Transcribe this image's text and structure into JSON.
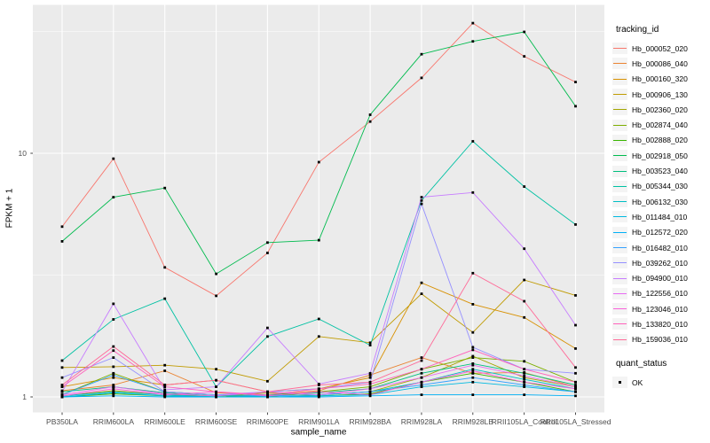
{
  "chart_data": {
    "type": "line",
    "title": "",
    "xlabel": "sample_name",
    "ylabel": "FPKM + 1",
    "y_scale": "log10",
    "y_ticks": [
      1,
      10
    ],
    "y_tick_labels": [
      "1",
      "10"
    ],
    "y_minor_ticks": [
      3.162,
      31.62
    ],
    "ylim": [
      0.87,
      40.5
    ],
    "grid": true,
    "panel_bg": "#ebebeb",
    "grid_color": "#ffffff",
    "point_color": "#000000",
    "point_shape": "square",
    "legend_position": "right",
    "categories": [
      "PB350LA",
      "RRIM600LA",
      "RRIM600LE",
      "RRIM600SE",
      "RRIM600PE",
      "RRIM901LA",
      "RRIM928BA",
      "RRIM928LA",
      "RRIM928LB",
      "RRII105LA_Control",
      "RRII105LA_Stressed"
    ],
    "legend": {
      "title": "tracking_id"
    },
    "quant_status": {
      "title": "quant_status",
      "items": [
        {
          "label": "OK",
          "marker": "black-square"
        }
      ]
    },
    "series": [
      {
        "name": "Hb_000052_020",
        "color": "#F8766D",
        "values": [
          5.0,
          9.5,
          3.4,
          2.6,
          3.9,
          9.2,
          13.5,
          20.4,
          34.2,
          25.0,
          19.6
        ]
      },
      {
        "name": "Hb_000086_040",
        "color": "#EA8331",
        "values": [
          1.06,
          1.12,
          1.28,
          1.04,
          1.02,
          1.06,
          1.23,
          1.45,
          1.25,
          1.26,
          1.1
        ]
      },
      {
        "name": "Hb_000160_320",
        "color": "#D89000",
        "values": [
          1.1,
          1.2,
          1.12,
          1.17,
          1.05,
          1.08,
          1.2,
          2.94,
          2.4,
          2.12,
          1.58
        ]
      },
      {
        "name": "Hb_000906_130",
        "color": "#C09B00",
        "values": [
          1.32,
          1.33,
          1.35,
          1.3,
          1.16,
          1.77,
          1.67,
          2.65,
          1.84,
          3.02,
          2.61
        ]
      },
      {
        "name": "Hb_002360_020",
        "color": "#A3A500",
        "values": [
          1.01,
          1.06,
          1.02,
          1.01,
          1.04,
          1.02,
          1.05,
          1.2,
          1.47,
          1.2,
          1.1
        ]
      },
      {
        "name": "Hb_002874_040",
        "color": "#7CAE00",
        "values": [
          1.02,
          1.25,
          1.05,
          1.02,
          1.0,
          1.05,
          1.1,
          1.3,
          1.45,
          1.4,
          1.15
        ]
      },
      {
        "name": "Hb_002888_020",
        "color": "#39B600",
        "values": [
          1.0,
          1.03,
          1.01,
          1.0,
          1.02,
          1.01,
          1.03,
          1.15,
          1.25,
          1.15,
          1.05
        ]
      },
      {
        "name": "Hb_002918_050",
        "color": "#00BB4E",
        "values": [
          4.35,
          6.6,
          7.2,
          3.2,
          4.3,
          4.4,
          14.4,
          25.5,
          28.8,
          31.5,
          15.6
        ]
      },
      {
        "name": "Hb_003523_040",
        "color": "#00BF7D",
        "values": [
          1.05,
          1.1,
          1.04,
          1.01,
          1.02,
          1.04,
          1.08,
          1.25,
          1.37,
          1.25,
          1.12
        ]
      },
      {
        "name": "Hb_005344_030",
        "color": "#00C1A3",
        "values": [
          1.41,
          2.08,
          2.53,
          1.1,
          1.77,
          2.09,
          1.63,
          6.4,
          11.2,
          7.3,
          5.1
        ]
      },
      {
        "name": "Hb_006132_030",
        "color": "#00BFC4",
        "values": [
          1.01,
          1.05,
          1.02,
          1.0,
          1.01,
          1.02,
          1.05,
          1.15,
          1.3,
          1.18,
          1.08
        ]
      },
      {
        "name": "Hb_011484_010",
        "color": "#00BAE0",
        "values": [
          1.0,
          1.04,
          1.01,
          1.0,
          1.0,
          1.01,
          1.02,
          1.1,
          1.15,
          1.1,
          1.05
        ]
      },
      {
        "name": "Hb_012572_020",
        "color": "#00B0F6",
        "values": [
          1.0,
          1.01,
          1.0,
          1.0,
          1.0,
          1.0,
          1.01,
          1.02,
          1.02,
          1.02,
          1.01
        ]
      },
      {
        "name": "Hb_016482_010",
        "color": "#35A2FF",
        "values": [
          1.02,
          1.23,
          1.05,
          1.02,
          1.01,
          1.02,
          1.05,
          1.12,
          1.2,
          1.12,
          1.05
        ]
      },
      {
        "name": "Hb_039262_010",
        "color": "#9590FF",
        "values": [
          1.2,
          1.45,
          1.05,
          1.02,
          1.05,
          1.08,
          1.15,
          6.2,
          1.6,
          1.3,
          1.25
        ]
      },
      {
        "name": "Hb_094900_010",
        "color": "#C77CFF",
        "values": [
          1.05,
          2.41,
          1.07,
          1.1,
          1.92,
          1.13,
          1.25,
          6.6,
          6.9,
          4.06,
          1.97
        ]
      },
      {
        "name": "Hb_122556_010",
        "color": "#E76BF3",
        "values": [
          1.02,
          1.1,
          1.03,
          1.01,
          1.05,
          1.02,
          1.08,
          1.2,
          1.35,
          1.22,
          1.1
        ]
      },
      {
        "name": "Hb_123046_010",
        "color": "#FA62DB",
        "values": [
          1.01,
          1.08,
          1.02,
          1.05,
          1.01,
          1.05,
          1.02,
          1.15,
          1.28,
          1.15,
          1.08
        ]
      },
      {
        "name": "Hb_133820_010",
        "color": "#FF62BC",
        "values": [
          1.1,
          1.55,
          1.1,
          1.05,
          1.02,
          1.08,
          1.13,
          1.3,
          1.56,
          1.3,
          1.15
        ]
      },
      {
        "name": "Hb_159036_010",
        "color": "#FF6A98",
        "values": [
          1.12,
          1.61,
          1.12,
          1.17,
          1.05,
          1.12,
          1.15,
          1.41,
          3.22,
          2.47,
          1.32
        ]
      }
    ]
  }
}
